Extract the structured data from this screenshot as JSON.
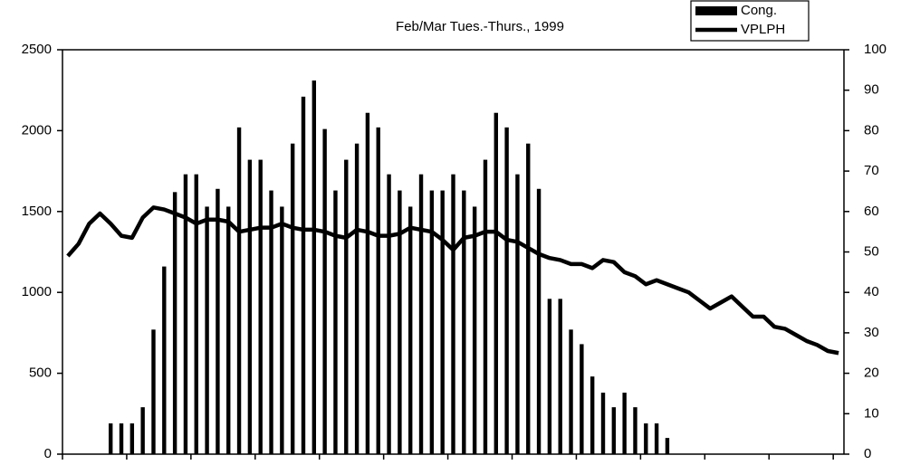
{
  "chart_data": {
    "type": "bar-line",
    "title": "Feb/Mar  Tues.-Thurs., 1999",
    "categories": [
      null,
      null,
      null,
      null,
      null,
      null,
      null,
      null,
      null,
      null,
      null,
      null,
      null,
      null,
      null,
      null,
      null,
      null,
      null,
      null,
      null,
      null,
      null,
      null,
      null,
      null,
      null,
      null,
      null,
      null,
      null,
      null,
      null,
      null,
      null,
      null,
      null,
      null,
      null,
      null,
      null,
      null,
      null,
      null,
      null,
      null,
      null,
      null,
      null,
      null,
      null,
      null,
      null,
      null,
      null,
      null,
      null,
      null,
      null,
      null,
      null,
      null,
      null,
      null,
      null,
      null,
      null,
      null,
      null,
      null,
      null,
      null,
      null
    ],
    "series": [
      {
        "name": "Cong.",
        "type": "bar",
        "color": "#000000",
        "axis": "y",
        "values": [
          null,
          null,
          null,
          null,
          190,
          190,
          190,
          290,
          770,
          1160,
          1620,
          1730,
          1730,
          1530,
          1640,
          1530,
          2020,
          1820,
          1820,
          1630,
          1530,
          1920,
          2210,
          2310,
          2010,
          1630,
          1820,
          1920,
          2110,
          2020,
          1730,
          1630,
          1530,
          1730,
          1630,
          1630,
          1730,
          1630,
          1530,
          1820,
          2110,
          2020,
          1730,
          1920,
          1640,
          960,
          960,
          770,
          680,
          480,
          380,
          290,
          380,
          290,
          190,
          190,
          100,
          null,
          null,
          null,
          null,
          null,
          null,
          null,
          null,
          null,
          null,
          null,
          null,
          null,
          null,
          null,
          null
        ]
      },
      {
        "name": "VPLPH",
        "type": "line",
        "color": "#000000",
        "axis": "y2",
        "values": [
          49,
          52,
          57,
          59.5,
          57,
          54,
          53.5,
          58.5,
          61,
          60.5,
          59.5,
          58.5,
          57,
          58,
          58,
          57.5,
          55,
          55.5,
          56,
          56,
          57,
          56,
          55.5,
          55.5,
          55,
          54,
          53.5,
          55.5,
          55,
          54,
          54,
          54.5,
          56,
          55.5,
          55,
          53,
          50.5,
          53.5,
          54,
          55,
          55,
          53,
          52.5,
          51,
          49.5,
          48.5,
          48,
          47,
          47,
          46,
          48,
          47.5,
          45,
          44,
          42,
          43,
          42,
          41,
          40,
          38,
          36,
          37.5,
          39,
          36.5,
          34,
          34,
          31.5,
          31,
          29.5,
          28,
          27,
          25.5,
          25
        ]
      }
    ],
    "ylim": [
      0,
      2500
    ],
    "yticks": [
      0,
      500,
      1000,
      1500,
      2000,
      2500
    ],
    "y2lim": [
      0,
      100
    ],
    "y2ticks": [
      0,
      10,
      20,
      30,
      40,
      50,
      60,
      70,
      80,
      90,
      100
    ],
    "legend": "top-right"
  }
}
